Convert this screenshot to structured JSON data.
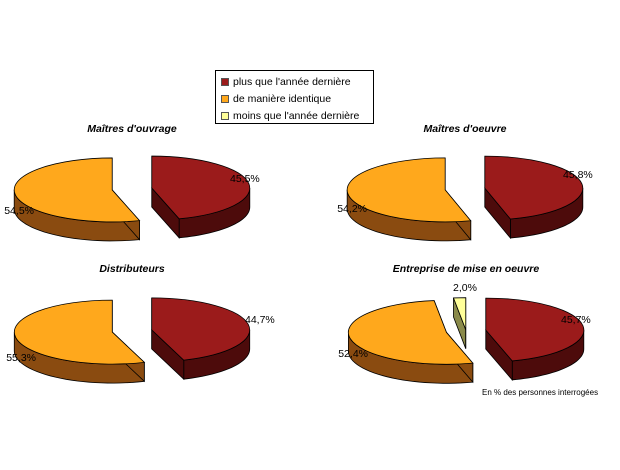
{
  "colors": {
    "plus": "#9b1b1b",
    "plus_side": "#4d0b0b",
    "ident": "#ffa81c",
    "ident_side": "#8a4b10",
    "moins": "#ffff99",
    "moins_side": "#8a8a4a",
    "edge": "#000000"
  },
  "legend": {
    "items": [
      {
        "label": "plus que l'année dernière",
        "color": "#9b1b1b"
      },
      {
        "label": "de manière identique",
        "color": "#ffa81c"
      },
      {
        "label": "moins que l'année dernière",
        "color": "#ffff99"
      }
    ]
  },
  "footnote": "En % des personnes interrogées",
  "chart_data": [
    {
      "type": "pie",
      "title": "Maîtres d'ouvrage",
      "labels": [
        "plus que l'année dernière",
        "de manière identique"
      ],
      "values": [
        45.5,
        54.5
      ],
      "value_labels": [
        "45,5%",
        "54,5%"
      ]
    },
    {
      "type": "pie",
      "title": "Maîtres d'oeuvre",
      "labels": [
        "plus que l'année dernière",
        "de manière identique"
      ],
      "values": [
        45.8,
        54.2
      ],
      "value_labels": [
        "45,8%",
        "54,2%"
      ]
    },
    {
      "type": "pie",
      "title": "Distributeurs",
      "labels": [
        "plus que l'année dernière",
        "de manière identique"
      ],
      "values": [
        44.7,
        55.3
      ],
      "value_labels": [
        "44,7%",
        "55,3%"
      ]
    },
    {
      "type": "pie",
      "title": "Entreprise de mise en oeuvre",
      "labels": [
        "plus que l'année dernière",
        "de manière identique",
        "moins que l'année dernière"
      ],
      "values": [
        45.7,
        52.4,
        2.0
      ],
      "value_labels": [
        "45,7%",
        "52,4%",
        "2,0%"
      ]
    }
  ]
}
